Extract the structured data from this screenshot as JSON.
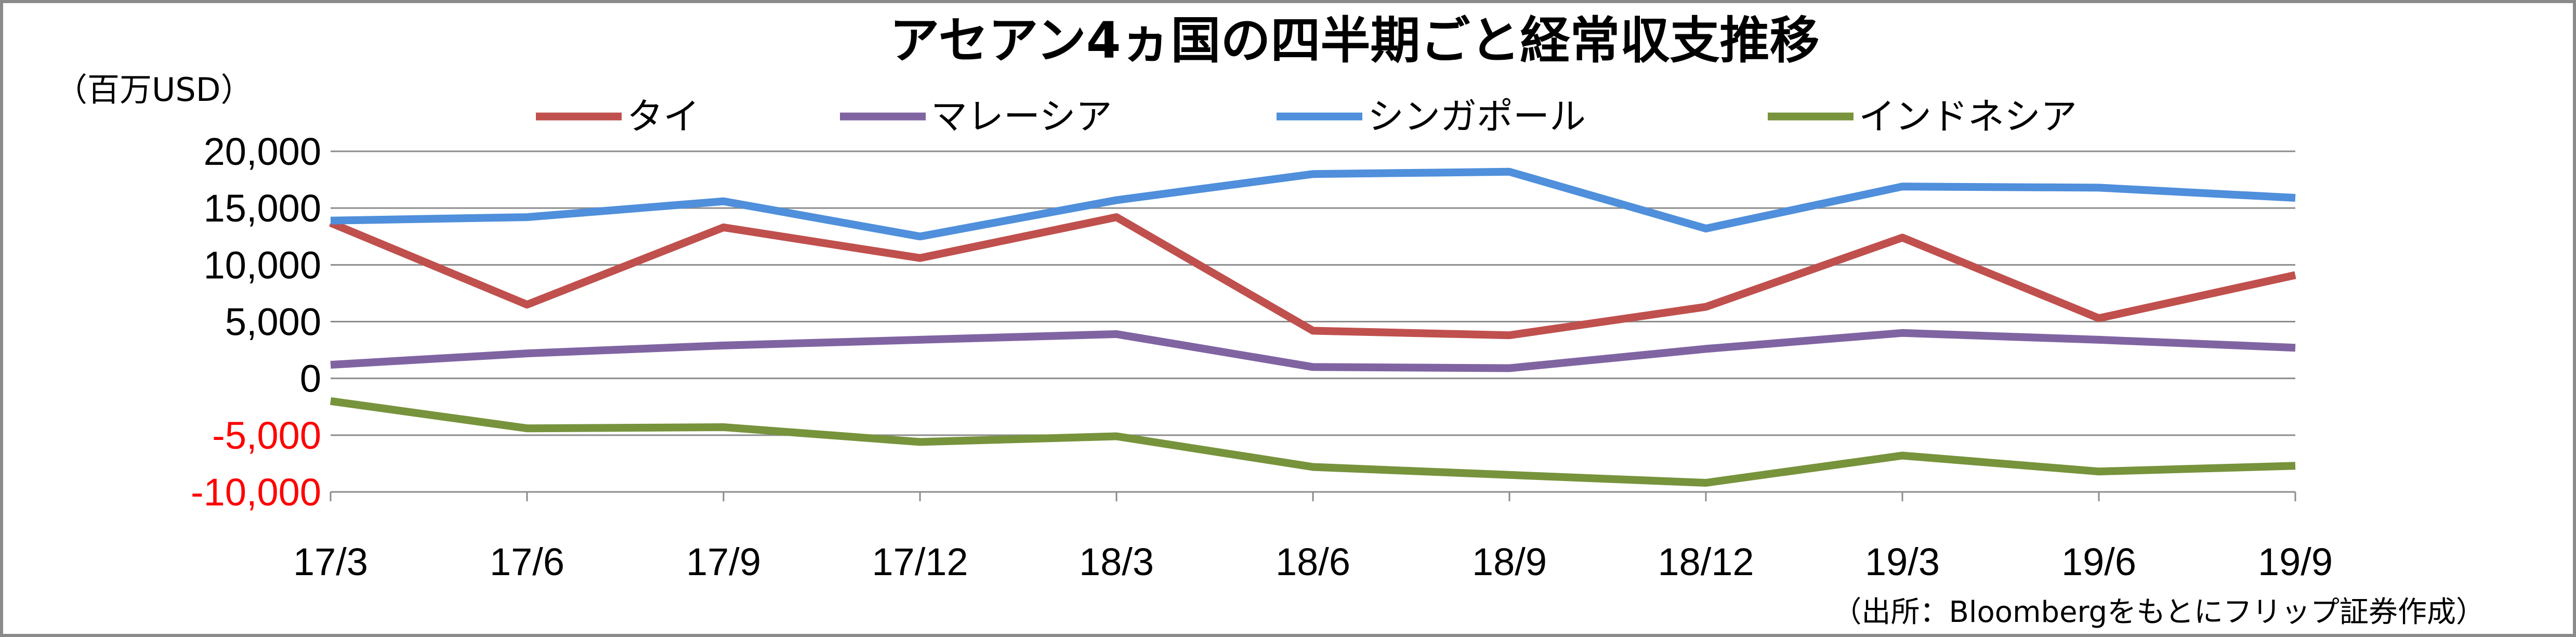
{
  "chart_data": {
    "type": "line",
    "title": "アセアン4ヵ国の四半期ごと経常収支推移",
    "ylabel": "（百万USD）",
    "source": "（出所：Bloombergをもとにフリップ証券作成）",
    "categories": [
      "17/3",
      "17/6",
      "17/9",
      "17/12",
      "18/3",
      "18/6",
      "18/9",
      "18/12",
      "19/3",
      "19/6",
      "19/9"
    ],
    "ylim": [
      -10000,
      20000
    ],
    "yticks": [
      20000,
      15000,
      10000,
      5000,
      0,
      -5000,
      -10000
    ],
    "ytick_labels": [
      "20,000",
      "15,000",
      "10,000",
      "5,000",
      "0",
      "-5,000",
      "-10,000"
    ],
    "ytick_colors": [
      "#000000",
      "#000000",
      "#000000",
      "#000000",
      "#000000",
      "#ff0000",
      "#ff0000"
    ],
    "grid": true,
    "legend_position": "top",
    "series": [
      {
        "name": "タイ",
        "color": "#c0504d",
        "values": [
          13700,
          6500,
          13300,
          10600,
          14200,
          4200,
          3800,
          6300,
          12400,
          5300,
          9100
        ]
      },
      {
        "name": "マレーシア",
        "color": "#8064a2",
        "values": [
          1200,
          2200,
          2900,
          3400,
          3900,
          1000,
          900,
          2600,
          4000,
          3400,
          2700
        ]
      },
      {
        "name": "シンガポール",
        "color": "#4f8fdb",
        "values": [
          13900,
          14200,
          15600,
          12500,
          15700,
          18000,
          18200,
          13200,
          16900,
          16800,
          15900
        ]
      },
      {
        "name": "インドネシア",
        "color": "#77933c",
        "values": [
          -2000,
          -4400,
          -4300,
          -5600,
          -5100,
          -7800,
          -8500,
          -9200,
          -6800,
          -8200,
          -7700
        ]
      }
    ]
  }
}
